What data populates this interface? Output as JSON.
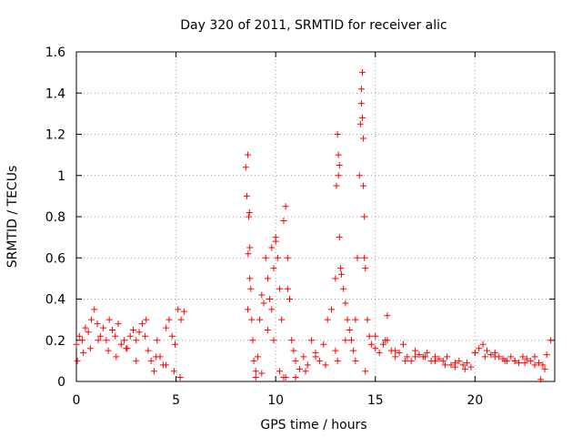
{
  "chart_data": {
    "type": "scatter",
    "title": "Day 320 of 2011, SRMTID for receiver alic",
    "xlabel": "GPS time / hours",
    "ylabel": "SRMTID / TECUs",
    "xlim": [
      0,
      24
    ],
    "ylim": [
      0,
      1.6
    ],
    "xticks": [
      0,
      5,
      10,
      15,
      20
    ],
    "xtick_labels": [
      "0",
      "5",
      "10",
      "15",
      "20"
    ],
    "yticks": [
      0,
      0.2,
      0.4,
      0.6,
      0.8,
      1.0,
      1.2,
      1.4,
      1.6
    ],
    "ytick_labels": [
      "0",
      "0.2",
      "0.4",
      "0.6",
      "0.8",
      "1",
      "1.2",
      "1.4",
      "1.6"
    ],
    "grid": true,
    "marker": "+",
    "color": "#ff0000",
    "series": [
      {
        "name": "SRMTID",
        "x": [
          0.0,
          0.15,
          0.3,
          0.45,
          0.6,
          0.75,
          0.9,
          1.05,
          1.2,
          1.35,
          1.5,
          1.65,
          1.8,
          1.95,
          2.1,
          2.25,
          2.4,
          2.55,
          2.7,
          2.85,
          3.0,
          3.15,
          3.3,
          3.45,
          3.6,
          3.75,
          3.9,
          4.05,
          4.2,
          4.35,
          4.5,
          4.65,
          4.8,
          4.95,
          5.1,
          5.25,
          5.4,
          0.05,
          0.35,
          0.7,
          1.1,
          1.6,
          2.0,
          2.5,
          3.0,
          3.5,
          4.0,
          4.5,
          4.9,
          5.2,
          8.5,
          8.55,
          8.6,
          8.65,
          8.7,
          8.75,
          8.8,
          8.85,
          8.9,
          9.0,
          9.1,
          9.2,
          9.3,
          9.4,
          9.5,
          9.6,
          9.7,
          9.8,
          9.9,
          10.0,
          10.1,
          10.2,
          10.3,
          10.4,
          10.5,
          10.6,
          10.7,
          10.8,
          10.9,
          11.0,
          11.2,
          11.4,
          11.6,
          11.8,
          12.0,
          12.2,
          12.4,
          12.6,
          12.8,
          13.0,
          13.05,
          13.1,
          13.15,
          13.2,
          13.25,
          13.3,
          13.4,
          13.5,
          13.6,
          13.7,
          13.8,
          13.9,
          14.0,
          14.1,
          14.2,
          14.25,
          14.3,
          14.35,
          14.4,
          14.45,
          14.5,
          14.6,
          14.7,
          14.8,
          15.0,
          15.2,
          15.4,
          15.6,
          15.8,
          16.0,
          16.2,
          16.4,
          16.6,
          16.8,
          17.0,
          17.2,
          17.4,
          17.6,
          17.8,
          18.0,
          18.2,
          18.4,
          18.6,
          18.8,
          19.0,
          19.2,
          19.4,
          19.6,
          19.8,
          20.0,
          20.2,
          20.4,
          20.6,
          20.8,
          21.0,
          21.2,
          21.4,
          21.6,
          21.8,
          22.0,
          22.2,
          22.4,
          22.6,
          22.8,
          23.0,
          23.2,
          23.4,
          23.6,
          23.8,
          8.6,
          8.7,
          9.0,
          9.3,
          9.6,
          9.9,
          10.2,
          10.4,
          10.6,
          11.0,
          11.5,
          12.0,
          12.5,
          13.0,
          13.5,
          14.0,
          14.5,
          15.0,
          15.5,
          16.0,
          16.5,
          17.0,
          17.5,
          18.0,
          18.5,
          19.0,
          19.5,
          20.0,
          20.5,
          21.0,
          21.5,
          22.0,
          22.5,
          23.0,
          23.5,
          8.62,
          8.68,
          9.8,
          10.0,
          10.5,
          13.1,
          13.15,
          13.2,
          14.3,
          14.35,
          14.4,
          14.45,
          15.6,
          23.3
        ],
        "y": [
          0.18,
          0.22,
          0.2,
          0.26,
          0.24,
          0.3,
          0.35,
          0.28,
          0.22,
          0.26,
          0.2,
          0.3,
          0.25,
          0.22,
          0.28,
          0.18,
          0.2,
          0.16,
          0.22,
          0.25,
          0.2,
          0.24,
          0.28,
          0.22,
          0.15,
          0.1,
          0.05,
          0.2,
          0.12,
          0.08,
          0.26,
          0.3,
          0.22,
          0.18,
          0.35,
          0.3,
          0.34,
          0.1,
          0.14,
          0.16,
          0.2,
          0.15,
          0.12,
          0.16,
          0.1,
          0.3,
          0.12,
          0.08,
          0.05,
          0.02,
          1.04,
          0.9,
          1.1,
          0.8,
          0.65,
          0.45,
          0.3,
          0.2,
          0.1,
          0.05,
          0.12,
          0.3,
          0.42,
          0.38,
          0.6,
          0.5,
          0.4,
          0.35,
          0.55,
          0.7,
          0.6,
          0.45,
          0.3,
          0.78,
          0.85,
          0.6,
          0.4,
          0.2,
          0.15,
          0.1,
          0.06,
          0.12,
          0.08,
          0.2,
          0.14,
          0.1,
          0.18,
          0.3,
          0.35,
          0.5,
          0.95,
          1.2,
          1.1,
          0.7,
          0.55,
          0.52,
          0.45,
          0.38,
          0.3,
          0.25,
          0.2,
          0.15,
          0.3,
          0.6,
          1.0,
          1.25,
          1.35,
          1.5,
          1.18,
          0.8,
          0.55,
          0.3,
          0.22,
          0.18,
          0.16,
          0.14,
          0.18,
          0.2,
          0.15,
          0.12,
          0.14,
          0.18,
          0.12,
          0.1,
          0.15,
          0.13,
          0.12,
          0.14,
          0.1,
          0.12,
          0.11,
          0.1,
          0.12,
          0.08,
          0.09,
          0.1,
          0.08,
          0.09,
          0.07,
          0.14,
          0.16,
          0.18,
          0.15,
          0.13,
          0.14,
          0.12,
          0.11,
          0.1,
          0.12,
          0.1,
          0.09,
          0.12,
          0.11,
          0.1,
          0.12,
          0.09,
          0.08,
          0.13,
          0.2,
          0.35,
          0.5,
          0.02,
          0.04,
          0.25,
          0.2,
          0.05,
          0.02,
          0.45,
          0.02,
          0.05,
          0.12,
          0.08,
          0.15,
          0.2,
          0.1,
          0.05,
          0.22,
          0.2,
          0.15,
          0.1,
          0.12,
          0.12,
          0.1,
          0.08,
          0.07,
          0.06,
          0.14,
          0.12,
          0.12,
          0.1,
          0.1,
          0.09,
          0.08,
          0.06,
          0.62,
          0.82,
          0.65,
          0.68,
          0.02,
          0.1,
          1.0,
          1.05,
          1.42,
          1.28,
          0.95,
          0.6,
          0.32,
          0.01
        ]
      }
    ]
  }
}
